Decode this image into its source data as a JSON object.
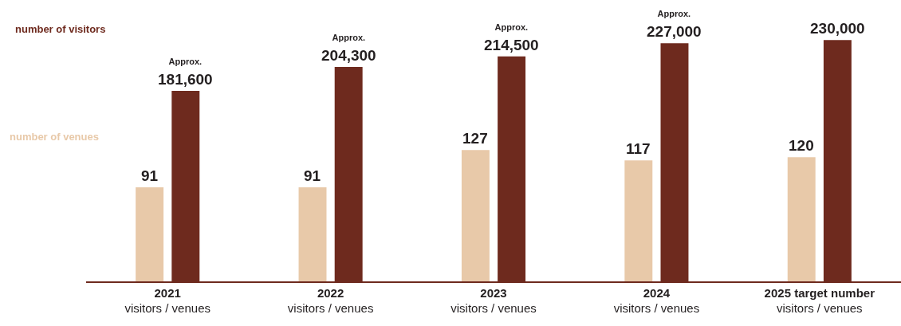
{
  "chart_data": {
    "type": "bar",
    "categories": [
      "2021\nvisitors / venues",
      "2022\nvisitors / venues",
      "2023\nvisitors / venues",
      "2024\nvisitors / venues",
      "2025 target number\nvisitors / venues"
    ],
    "series": [
      {
        "name": "number of venues",
        "color": "#e8c9a9",
        "values": [
          91,
          91,
          127,
          117,
          120
        ],
        "value_labels": [
          "91",
          "91",
          "127",
          "117",
          "120"
        ]
      },
      {
        "name": "number of visitors",
        "color": "#6e2a1e",
        "axis": "y2",
        "values": [
          181600,
          204300,
          214500,
          227000,
          230000
        ],
        "value_labels": [
          "Approx.\n181,600",
          "Approx.\n204,300",
          "Approx.\n214,500",
          "Approx.\n227,000",
          "230,000"
        ]
      }
    ],
    "ylim": [
      0,
      272
    ],
    "y2lim": [
      0,
      268200
    ],
    "tick_labels": "x",
    "legend": false
  }
}
